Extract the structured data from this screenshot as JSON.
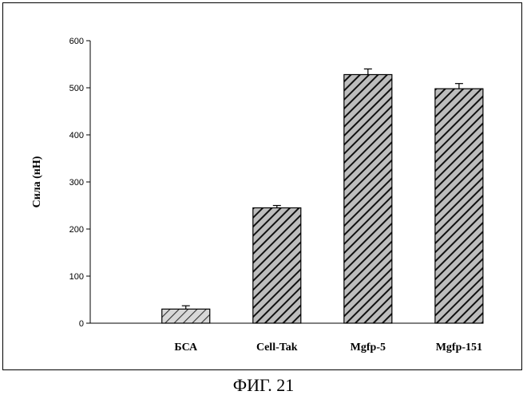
{
  "figure_caption": "ФИГ. 21",
  "colors": {
    "bar_fill_light": "#d8d8d8",
    "bar_fill_dark": "#bdbdbd",
    "hatch": "#111111",
    "axis": "#000000"
  },
  "chart_data": {
    "type": "bar",
    "title": "",
    "xlabel": "",
    "ylabel": "Сила (нН)",
    "ylim": [
      0,
      600
    ],
    "yticks": [
      0,
      100,
      200,
      300,
      400,
      500,
      600
    ],
    "grid": false,
    "legend": "none",
    "categories": [
      "БСА",
      "Cell-Tak",
      "Mgfp-5",
      "Mgfp-151"
    ],
    "values": [
      30,
      245,
      528,
      498
    ],
    "errors": [
      7,
      5,
      12,
      11
    ],
    "bar_styles": [
      "light",
      "dark",
      "dark",
      "dark"
    ]
  }
}
